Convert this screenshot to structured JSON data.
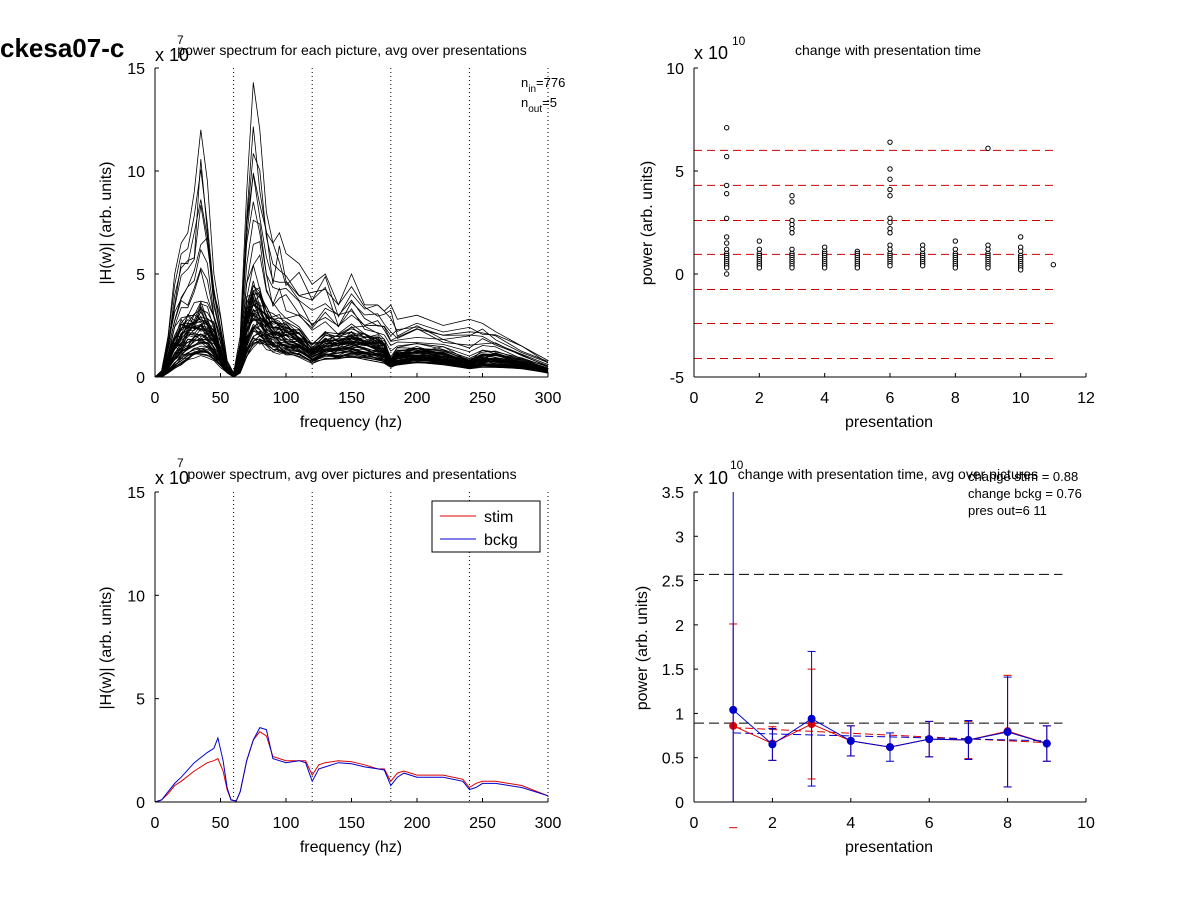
{
  "figure_title": "ckesa07-c",
  "chart_data": [
    {
      "id": "p1",
      "type": "line",
      "title": "power spectrum for each picture, avg over presentations",
      "xlabel": "frequency (hz)",
      "ylabel": "|H(w)| (arb. units)",
      "exponent_label": "x 10",
      "exponent_power": "7",
      "xlim": [
        0,
        300
      ],
      "ylim": [
        0,
        15
      ],
      "xticks": [
        0,
        50,
        100,
        150,
        200,
        250,
        300
      ],
      "yticks": [
        0,
        5,
        10,
        15
      ],
      "vlines": [
        60,
        120,
        180,
        240,
        300
      ],
      "annotations": [
        {
          "base": "n",
          "sub": "in",
          "value": "=776"
        },
        {
          "base": "n",
          "sub": "out",
          "value": "=5"
        }
      ],
      "grid": false,
      "x": [
        0,
        5,
        10,
        15,
        20,
        25,
        30,
        35,
        40,
        45,
        50,
        55,
        60,
        65,
        70,
        75,
        80,
        85,
        90,
        95,
        100,
        110,
        120,
        130,
        140,
        150,
        160,
        170,
        175,
        180,
        185,
        200,
        220,
        240,
        250,
        260,
        280,
        300
      ],
      "envelope_upper": [
        0,
        0.3,
        2,
        5,
        6.5,
        7,
        9,
        12,
        9.5,
        5,
        3,
        0.8,
        0.2,
        2,
        9,
        14.3,
        12,
        8,
        6.5,
        7,
        6,
        5.5,
        4.5,
        5,
        3.5,
        5,
        3.5,
        3.5,
        3.2,
        3.5,
        2.8,
        3,
        2.5,
        2.8,
        2.6,
        2.2,
        1.5,
        0.8
      ],
      "envelope_lower": [
        0,
        0,
        0.2,
        0.4,
        0.6,
        0.8,
        1.0,
        1.1,
        1.0,
        0.8,
        0.5,
        0.2,
        0,
        0.2,
        1.0,
        1.5,
        1.6,
        1.4,
        1.3,
        1.2,
        1.1,
        1.0,
        0.7,
        0.9,
        0.9,
        1.0,
        0.9,
        0.8,
        0.7,
        0.5,
        0.6,
        0.7,
        0.6,
        0.4,
        0.5,
        0.5,
        0.4,
        0.2
      ],
      "typical": [
        0,
        0.1,
        1,
        2,
        2.5,
        2.8,
        3,
        3.2,
        3,
        2.5,
        1.5,
        0.4,
        0.1,
        1,
        3.5,
        4.5,
        4,
        3.2,
        2.8,
        2.7,
        2.5,
        2.2,
        1.5,
        2,
        2,
        2.2,
        2,
        1.9,
        1.7,
        0.8,
        1.3,
        1.4,
        1.3,
        0.8,
        1.1,
        1.1,
        0.8,
        0.4
      ],
      "n_lines": 60,
      "color": "#000000"
    },
    {
      "id": "p2",
      "type": "scatter",
      "title": "change with presentation time",
      "xlabel": "presentation",
      "ylabel": "power (arb. units)",
      "exponent_label": "x 10",
      "exponent_power": "10",
      "xlim": [
        0,
        12
      ],
      "ylim": [
        -5,
        10
      ],
      "xticks": [
        0,
        2,
        4,
        6,
        8,
        10,
        12
      ],
      "yticks": [
        -5,
        0,
        5,
        10
      ],
      "hlines": [
        6.0,
        4.3,
        2.6,
        0.95,
        -0.75,
        -2.4,
        -4.1
      ],
      "hline_color": "#cc0000",
      "grid": false,
      "points": [
        {
          "x": 1,
          "y": [
            7.1,
            5.7,
            4.3,
            3.9,
            2.7,
            1.8,
            1.5,
            1.2,
            1.0,
            0.9,
            0.8,
            0.7,
            0.6,
            0.5,
            0.4,
            0.3,
            0.0
          ]
        },
        {
          "x": 2,
          "y": [
            1.6,
            1.2,
            1.0,
            0.9,
            0.8,
            0.7,
            0.6,
            0.5,
            0.4,
            0.3
          ]
        },
        {
          "x": 3,
          "y": [
            3.8,
            3.5,
            2.6,
            2.4,
            2.2,
            2.0,
            1.2,
            1.0,
            0.9,
            0.8,
            0.7,
            0.6,
            0.5,
            0.4,
            0.3
          ]
        },
        {
          "x": 4,
          "y": [
            1.3,
            1.1,
            1.0,
            0.9,
            0.8,
            0.7,
            0.6,
            0.5,
            0.4,
            0.3
          ]
        },
        {
          "x": 5,
          "y": [
            1.1,
            1.0,
            0.9,
            0.8,
            0.7,
            0.6,
            0.5,
            0.4,
            0.3
          ]
        },
        {
          "x": 6,
          "y": [
            6.4,
            5.1,
            4.6,
            4.1,
            3.8,
            2.7,
            2.5,
            2.2,
            2.0,
            1.4,
            1.2,
            1.0,
            0.9,
            0.8,
            0.7,
            0.6,
            0.5,
            0.4
          ]
        },
        {
          "x": 7,
          "y": [
            1.4,
            1.2,
            1.0,
            0.9,
            0.8,
            0.7,
            0.6,
            0.5,
            0.4
          ]
        },
        {
          "x": 8,
          "y": [
            1.6,
            1.2,
            1.0,
            0.9,
            0.8,
            0.7,
            0.6,
            0.5,
            0.4,
            0.3
          ]
        },
        {
          "x": 9,
          "y": [
            6.1,
            1.4,
            1.2,
            1.0,
            0.9,
            0.8,
            0.7,
            0.6,
            0.5,
            0.4,
            0.3
          ]
        },
        {
          "x": 10,
          "y": [
            1.8,
            1.3,
            1.1,
            0.9,
            0.8,
            0.7,
            0.6,
            0.5,
            0.4,
            0.3,
            0.2
          ]
        },
        {
          "x": 11,
          "y": [
            0.45
          ]
        }
      ]
    },
    {
      "id": "p3",
      "type": "line",
      "title": "power spectrum, avg over pictures and presentations",
      "xlabel": "frequency (hz)",
      "ylabel": "|H(w)| (arb. units)",
      "exponent_label": "x 10",
      "exponent_power": "7",
      "xlim": [
        0,
        300
      ],
      "ylim": [
        0,
        15
      ],
      "xticks": [
        0,
        50,
        100,
        150,
        200,
        250,
        300
      ],
      "yticks": [
        0,
        5,
        10,
        15
      ],
      "vlines": [
        60,
        120,
        180,
        240,
        300
      ],
      "legend_position": "top-right",
      "grid": false,
      "x": [
        0,
        5,
        10,
        15,
        20,
        30,
        40,
        45,
        48,
        52,
        55,
        58,
        62,
        65,
        70,
        75,
        80,
        85,
        90,
        100,
        110,
        115,
        120,
        125,
        130,
        140,
        150,
        160,
        170,
        175,
        180,
        185,
        190,
        200,
        220,
        235,
        240,
        245,
        250,
        260,
        280,
        300
      ],
      "series": [
        {
          "name": "stim",
          "color": "#dd0000",
          "values": [
            0,
            0.1,
            0.4,
            0.8,
            1.0,
            1.5,
            1.9,
            2.0,
            2.1,
            1.5,
            0.6,
            0.1,
            0.05,
            0.5,
            2.0,
            3.0,
            3.4,
            3.2,
            2.2,
            2.0,
            2.0,
            2.0,
            1.3,
            1.8,
            1.9,
            2.0,
            1.95,
            1.8,
            1.6,
            1.6,
            1.0,
            1.4,
            1.5,
            1.3,
            1.3,
            1.1,
            0.7,
            0.9,
            1.0,
            1.0,
            0.8,
            0.3
          ]
        },
        {
          "name": "bckg",
          "color": "#0000cc",
          "values": [
            0,
            0.1,
            0.5,
            0.9,
            1.2,
            1.9,
            2.4,
            2.6,
            3.1,
            2.0,
            0.7,
            0.1,
            0.05,
            0.5,
            2.0,
            3.0,
            3.6,
            3.5,
            2.1,
            1.9,
            2.0,
            1.9,
            1.0,
            1.6,
            1.7,
            1.9,
            1.85,
            1.7,
            1.6,
            1.55,
            0.8,
            1.2,
            1.4,
            1.2,
            1.2,
            1.0,
            0.6,
            0.7,
            0.9,
            0.9,
            0.7,
            0.3
          ]
        }
      ]
    },
    {
      "id": "p4",
      "type": "line",
      "title": "change with presentation time, avg over pictures",
      "xlabel": "presentation",
      "ylabel": "power (arb. units)",
      "exponent_label": "x 10",
      "exponent_power": "10",
      "xlim": [
        0,
        10
      ],
      "ylim": [
        0,
        3.5
      ],
      "xticks": [
        0,
        2,
        4,
        6,
        8,
        10
      ],
      "yticks": [
        0,
        0.5,
        1,
        1.5,
        2,
        2.5,
        3,
        3.5
      ],
      "ytick_labels": [
        "0",
        "0.5",
        "1",
        "1.5",
        "2",
        "2.5",
        "3",
        "3.5"
      ],
      "annotations": [
        "change stim = 0.88",
        "change bckg = 0.76",
        "pres out=6 11"
      ],
      "hlines_dashed_black": [
        2.57,
        0.89
      ],
      "grid": false,
      "x": [
        1,
        2,
        3,
        4,
        5,
        6,
        7,
        8,
        9
      ],
      "series": [
        {
          "name": "stim",
          "color": "#dd0000",
          "values": [
            0.86,
            0.66,
            0.88,
            0.69,
            0.62,
            0.71,
            0.7,
            0.8,
            0.66
          ],
          "err": [
            1.15,
            0.19,
            0.62,
            0.17,
            0.0,
            0.2,
            0.21,
            0.63,
            0.2
          ],
          "fit": [
            0.84,
            0.67
          ]
        },
        {
          "name": "bckg",
          "color": "#0000cc",
          "values": [
            1.04,
            0.65,
            0.94,
            0.69,
            0.62,
            0.71,
            0.7,
            0.79,
            0.66
          ],
          "err": [
            2.55,
            0.18,
            0.76,
            0.17,
            0.16,
            0.2,
            0.22,
            0.62,
            0.2
          ],
          "fit": [
            0.78,
            0.69
          ]
        }
      ]
    }
  ]
}
